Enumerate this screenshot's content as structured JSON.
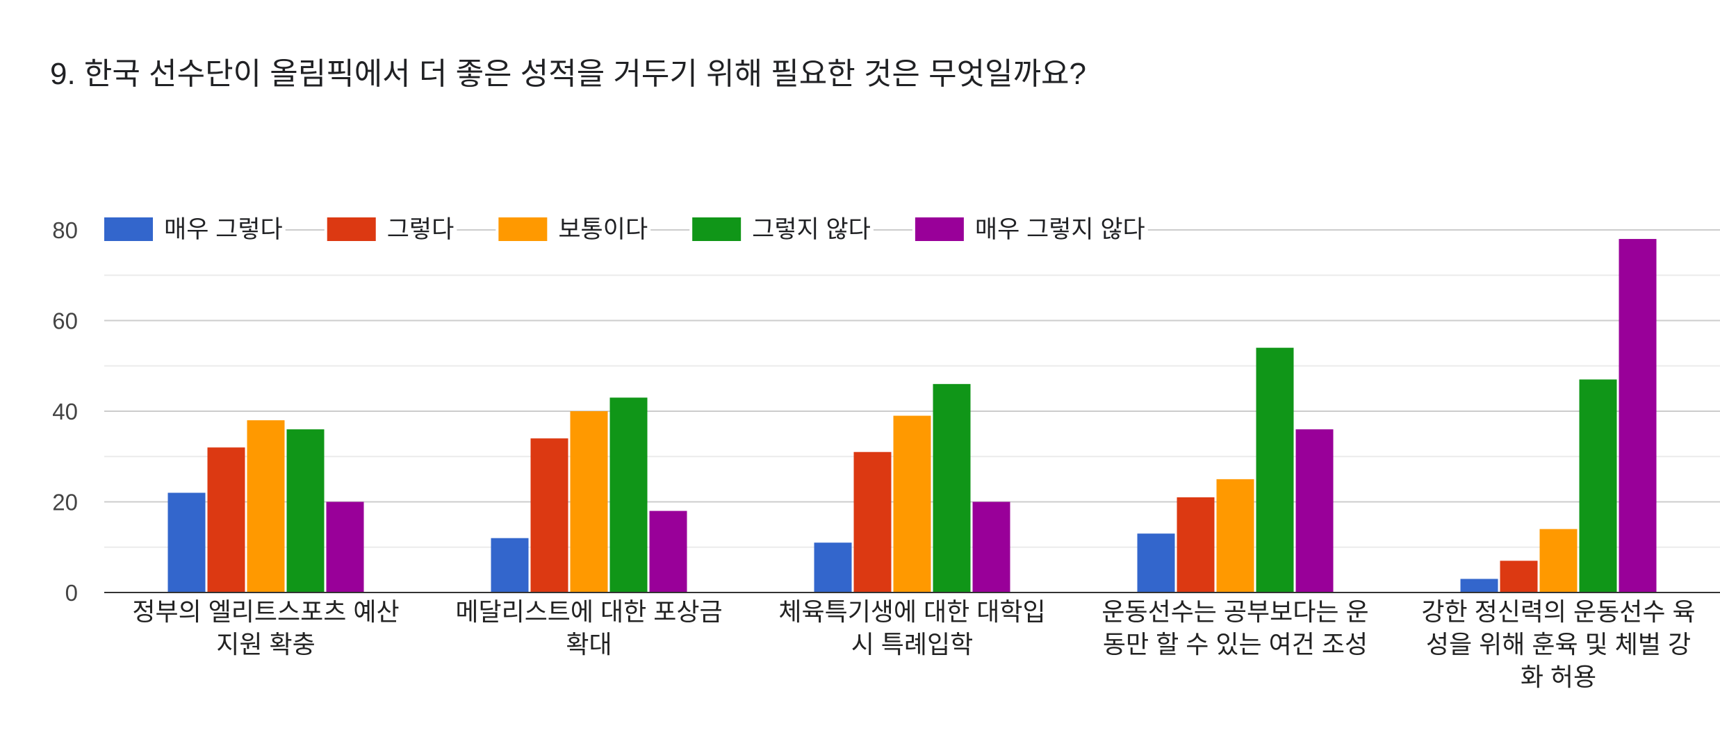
{
  "chart_data": {
    "type": "bar",
    "title": "9. 한국 선수단이 올림픽에서 더 좋은 성적을 거두기 위해 필요한 것은 무엇일까요?",
    "categories": [
      [
        "정부의 엘리트스포츠 예산",
        "지원 확충"
      ],
      [
        "메달리스트에 대한 포상금",
        "확대"
      ],
      [
        "체육특기생에 대한 대학입",
        "시 특례입학"
      ],
      [
        "운동선수는 공부보다는 운",
        "동만 할 수 있는 여건 조성"
      ],
      [
        "강한 정신력의 운동선수 육",
        "성을 위해 훈육 및 체벌 강",
        "화 허용"
      ]
    ],
    "series": [
      {
        "name": "매우 그렇다",
        "color": "#3366cc",
        "values": [
          22,
          12,
          11,
          13,
          3
        ]
      },
      {
        "name": "그렇다",
        "color": "#dc3912",
        "values": [
          32,
          34,
          31,
          21,
          7
        ]
      },
      {
        "name": "보통이다",
        "color": "#ff9900",
        "values": [
          38,
          40,
          39,
          25,
          14
        ]
      },
      {
        "name": "그렇지 않다",
        "color": "#109618",
        "values": [
          36,
          43,
          46,
          54,
          47
        ]
      },
      {
        "name": "매우 그렇지 않다",
        "color": "#990099",
        "values": [
          20,
          18,
          20,
          36,
          78
        ]
      }
    ],
    "yticks": [
      0,
      20,
      40,
      60,
      80
    ],
    "ylim": [
      0,
      80
    ],
    "grid": true,
    "minor_grid": true,
    "legend_position": "top-left"
  }
}
